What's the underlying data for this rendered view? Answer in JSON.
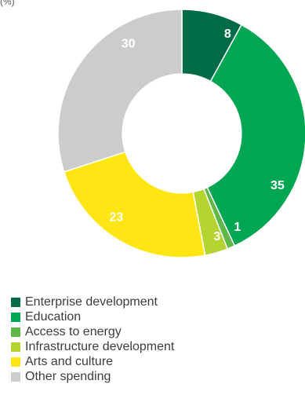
{
  "header": {
    "unit_label": "(%)"
  },
  "chart_data": {
    "type": "pie",
    "title": "",
    "categories": [
      "Enterprise development",
      "Education",
      "Access to energy",
      "Infrastructure development",
      "Arts and culture",
      "Other spending"
    ],
    "values": [
      8,
      35,
      1,
      3,
      23,
      30
    ],
    "colors": [
      "#006B48",
      "#00A651",
      "#5DB848",
      "#B4D432",
      "#FFE512",
      "#CCCCCC"
    ],
    "data_labels": [
      "8",
      "35",
      "1",
      "3",
      "23",
      "30"
    ],
    "legend_position": "bottom-left",
    "inner_radius_fraction": 0.48
  },
  "legend": {
    "items": [
      {
        "label": "Enterprise development",
        "color": "#006B48"
      },
      {
        "label": "Education",
        "color": "#00A651"
      },
      {
        "label": "Access to energy",
        "color": "#5DB848"
      },
      {
        "label": "Infrastructure development",
        "color": "#B4D432"
      },
      {
        "label": "Arts and culture",
        "color": "#FFE512"
      },
      {
        "label": "Other spending",
        "color": "#CCCCCC"
      }
    ]
  }
}
